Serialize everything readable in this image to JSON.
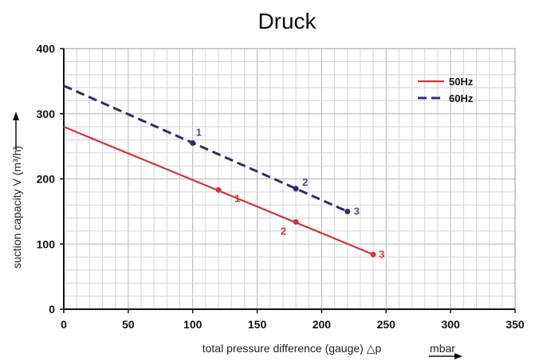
{
  "chart_data": {
    "type": "line",
    "title": "Druck",
    "xlabel": "total pressure difference (gauge) △p",
    "xunit": "mbar",
    "ylabel": "suction capacity V (m³/h)",
    "xlim": [
      0,
      350
    ],
    "ylim": [
      0,
      400
    ],
    "xticks": [
      0,
      50,
      100,
      150,
      200,
      250,
      300,
      350
    ],
    "yticks": [
      0,
      100,
      200,
      300,
      400
    ],
    "grid": true,
    "legend_position": "top-right",
    "series": [
      {
        "name": "50Hz",
        "color": "#d0343a",
        "style": "solid",
        "line": [
          [
            0,
            280
          ],
          [
            240,
            84
          ]
        ],
        "points": [
          {
            "x": 120,
            "y": 183,
            "label": "1"
          },
          {
            "x": 180,
            "y": 134,
            "label": "2"
          },
          {
            "x": 240,
            "y": 84,
            "label": "3"
          }
        ]
      },
      {
        "name": "60Hz",
        "color": "#2a2e6e",
        "label_color": "#4a4d94",
        "style": "dashed",
        "line": [
          [
            0,
            343
          ],
          [
            220,
            150
          ]
        ],
        "points": [
          {
            "x": 100,
            "y": 255,
            "label": "1"
          },
          {
            "x": 180,
            "y": 185,
            "label": "2"
          },
          {
            "x": 220,
            "y": 150,
            "label": "3"
          }
        ]
      }
    ]
  }
}
